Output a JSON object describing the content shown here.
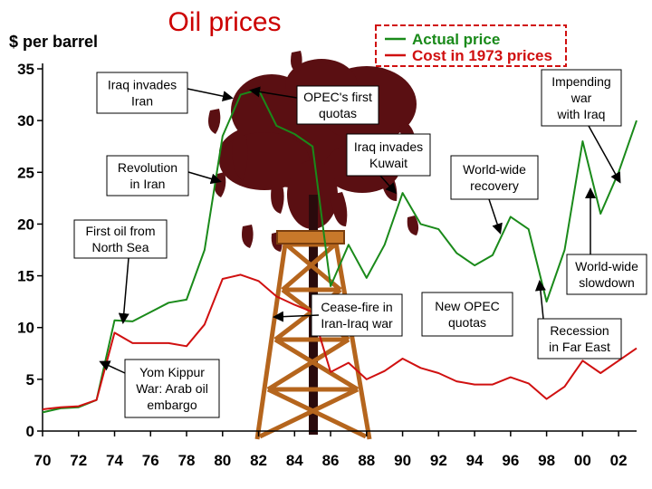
{
  "chart_data": {
    "type": "line",
    "title": "Oil prices",
    "ylabel": "$ per barrel",
    "xlabel": "",
    "xlim": [
      1970,
      2003
    ],
    "ylim": [
      0,
      35
    ],
    "x_ticks": [
      {
        "value": 1970,
        "label": "70"
      },
      {
        "value": 1972,
        "label": "72"
      },
      {
        "value": 1974,
        "label": "74"
      },
      {
        "value": 1976,
        "label": "76"
      },
      {
        "value": 1978,
        "label": "78"
      },
      {
        "value": 1980,
        "label": "80"
      },
      {
        "value": 1982,
        "label": "82"
      },
      {
        "value": 1984,
        "label": "84"
      },
      {
        "value": 1986,
        "label": "86"
      },
      {
        "value": 1988,
        "label": "88"
      },
      {
        "value": 1990,
        "label": "90"
      },
      {
        "value": 1992,
        "label": "92"
      },
      {
        "value": 1994,
        "label": "94"
      },
      {
        "value": 1996,
        "label": "96"
      },
      {
        "value": 1998,
        "label": "98"
      },
      {
        "value": 2000,
        "label": "00"
      },
      {
        "value": 2002,
        "label": "02"
      }
    ],
    "y_ticks": [
      {
        "value": 0,
        "label": "0"
      },
      {
        "value": 5,
        "label": "5"
      },
      {
        "value": 10,
        "label": "10"
      },
      {
        "value": 15,
        "label": "15"
      },
      {
        "value": 20,
        "label": "20"
      },
      {
        "value": 25,
        "label": "25"
      },
      {
        "value": 30,
        "label": "30"
      },
      {
        "value": 35,
        "label": "35"
      }
    ],
    "legend_position": "top-right",
    "series": [
      {
        "name": "Actual price",
        "color": "#1a8a1a",
        "points": [
          [
            1970,
            1.8
          ],
          [
            1971,
            2.2
          ],
          [
            1972,
            2.3
          ],
          [
            1973,
            3.0
          ],
          [
            1974,
            10.7
          ],
          [
            1975,
            10.6
          ],
          [
            1976,
            11.5
          ],
          [
            1977,
            12.4
          ],
          [
            1978,
            12.7
          ],
          [
            1979,
            17.5
          ],
          [
            1980,
            28.5
          ],
          [
            1981,
            32.5
          ],
          [
            1982,
            33.0
          ],
          [
            1983,
            29.5
          ],
          [
            1984,
            28.7
          ],
          [
            1985,
            27.5
          ],
          [
            1986,
            14.0
          ],
          [
            1987,
            18.0
          ],
          [
            1988,
            14.8
          ],
          [
            1989,
            18.0
          ],
          [
            1990,
            23.0
          ],
          [
            1991,
            20.0
          ],
          [
            1992,
            19.5
          ],
          [
            1993,
            17.2
          ],
          [
            1994,
            16.0
          ],
          [
            1995,
            17.0
          ],
          [
            1996,
            20.7
          ],
          [
            1997,
            19.5
          ],
          [
            1998,
            12.5
          ],
          [
            1999,
            17.5
          ],
          [
            2000,
            28.0
          ],
          [
            2001,
            21.0
          ],
          [
            2002,
            25.0
          ],
          [
            2003,
            30.0
          ]
        ]
      },
      {
        "name": "Cost in 1973 prices",
        "color": "#d01010",
        "points": [
          [
            1970,
            2.1
          ],
          [
            1971,
            2.3
          ],
          [
            1972,
            2.4
          ],
          [
            1973,
            3.0
          ],
          [
            1974,
            9.5
          ],
          [
            1975,
            8.5
          ],
          [
            1976,
            8.5
          ],
          [
            1977,
            8.5
          ],
          [
            1978,
            8.2
          ],
          [
            1979,
            10.3
          ],
          [
            1980,
            14.7
          ],
          [
            1981,
            15.1
          ],
          [
            1982,
            14.5
          ],
          [
            1983,
            13.0
          ],
          [
            1984,
            12.2
          ],
          [
            1985,
            11.5
          ],
          [
            1986,
            5.7
          ],
          [
            1987,
            6.6
          ],
          [
            1988,
            5.0
          ],
          [
            1989,
            5.8
          ],
          [
            1990,
            7.0
          ],
          [
            1991,
            6.1
          ],
          [
            1992,
            5.6
          ],
          [
            1993,
            4.8
          ],
          [
            1994,
            4.5
          ],
          [
            1995,
            4.5
          ],
          [
            1996,
            5.2
          ],
          [
            1997,
            4.6
          ],
          [
            1998,
            3.1
          ],
          [
            1999,
            4.3
          ],
          [
            2000,
            6.8
          ],
          [
            2001,
            5.6
          ],
          [
            2002,
            6.8
          ],
          [
            2003,
            8.0
          ]
        ]
      }
    ],
    "annotations": [
      {
        "id": "iraq-invades-iran",
        "lines": [
          "Iraq invades",
          "Iran"
        ]
      },
      {
        "id": "opec-first-quotas",
        "lines": [
          "OPEC's first",
          "quotas"
        ]
      },
      {
        "id": "impending-war",
        "lines": [
          "Impending",
          "war",
          "with Iraq"
        ]
      },
      {
        "id": "revolution-iran",
        "lines": [
          "Revolution",
          "in Iran"
        ]
      },
      {
        "id": "iraq-invades-kuwait",
        "lines": [
          "Iraq invades",
          "Kuwait"
        ]
      },
      {
        "id": "world-wide-recovery",
        "lines": [
          "World-wide",
          "recovery"
        ]
      },
      {
        "id": "first-oil-north-sea",
        "lines": [
          "First oil from",
          "North Sea"
        ]
      },
      {
        "id": "world-wide-slowdown",
        "lines": [
          "World-wide",
          "slowdown"
        ]
      },
      {
        "id": "cease-fire",
        "lines": [
          "Cease-fire in",
          "Iran-Iraq war"
        ]
      },
      {
        "id": "new-opec-quotas",
        "lines": [
          "New OPEC",
          "quotas"
        ]
      },
      {
        "id": "recession-far-east",
        "lines": [
          "Recession",
          "in Far East"
        ]
      },
      {
        "id": "yom-kippur",
        "lines": [
          "Yom Kippur",
          "War: Arab oil",
          "embargo"
        ]
      }
    ]
  }
}
